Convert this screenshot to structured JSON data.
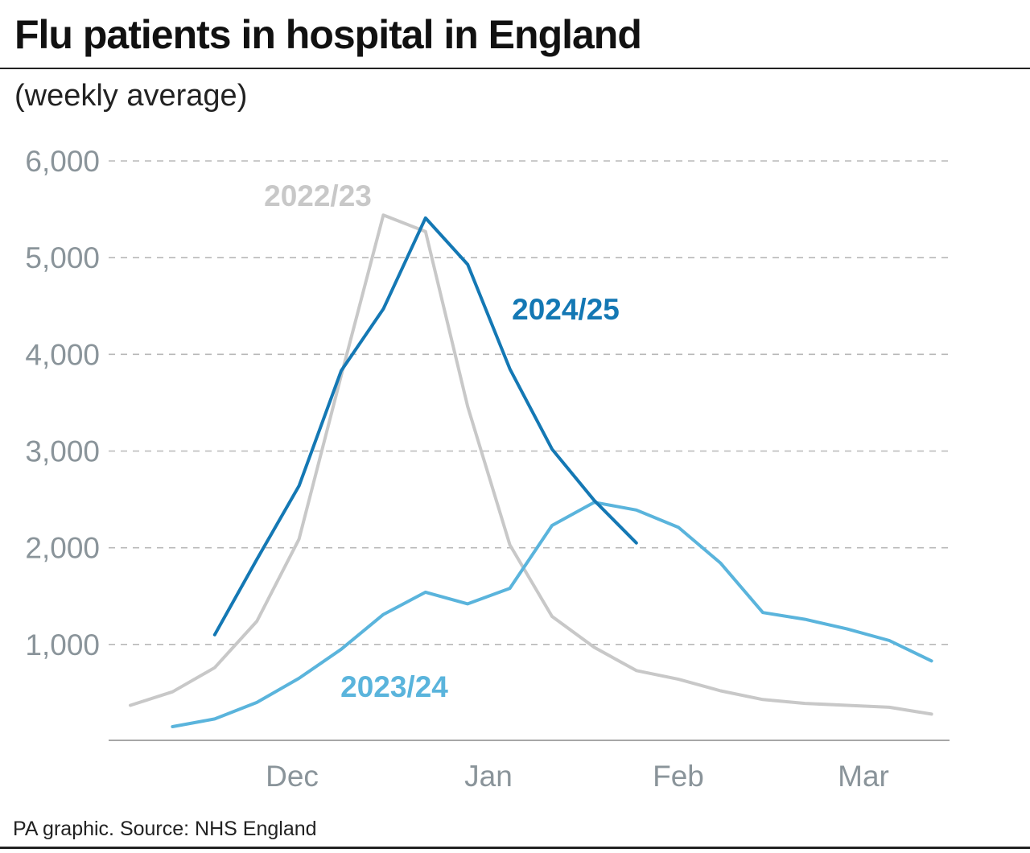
{
  "header": {
    "title": "Flu patients in hospital in England",
    "subtitle": "(weekly average)"
  },
  "footer": {
    "source": "PA graphic. Source: NHS England"
  },
  "chart_data": {
    "type": "line",
    "x_tick_labels": [
      "Dec",
      "Jan",
      "Feb",
      "Mar"
    ],
    "y_ticks": [
      1000,
      2000,
      3000,
      4000,
      5000,
      6000
    ],
    "y_tick_labels": [
      "1,000",
      "2,000",
      "3,000",
      "4,000",
      "5,000",
      "6,000"
    ],
    "ylim": [
      0,
      6000
    ],
    "grid": "horizontal dashed",
    "series": [
      {
        "name": "2022/23",
        "color": "#c8c8c8",
        "values": [
          370,
          510,
          760,
          1240,
          2090,
          3780,
          5440,
          5270,
          3460,
          2030,
          1290,
          970,
          730,
          640,
          520,
          430,
          390,
          370,
          350,
          280
        ]
      },
      {
        "name": "2023/24",
        "color": "#5ab4dc",
        "values": [
          150,
          230,
          400,
          650,
          950,
          1310,
          1540,
          1420,
          1580,
          2230,
          2470,
          2390,
          2210,
          1840,
          1330,
          1260,
          1160,
          1040,
          830
        ]
      },
      {
        "name": "2024/25",
        "color": "#1478b4",
        "values": [
          1100,
          1880,
          2640,
          3830,
          4470,
          5410,
          4930,
          3850,
          3020,
          2490,
          2050
        ]
      }
    ]
  }
}
